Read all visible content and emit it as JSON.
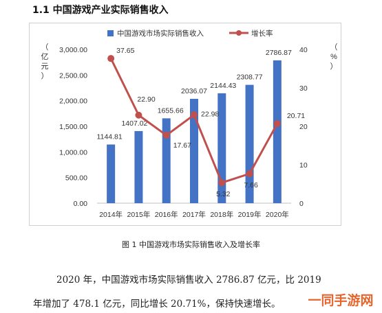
{
  "section_title": "1.1 中国游戏产业实际销售收入",
  "caption": "图 1  中国游戏市场实际销售收入及增长率",
  "paragraph_line1": "2020 年，中国游戏市场实际销售收入 2786.87 亿元，比 2019",
  "paragraph_line2": "年增加了 478.1 亿元，同比增长 20.71%，保持快速增长。",
  "watermark": "一同手游网",
  "colors": {
    "bar": "#4472c4",
    "line": "#c0504d",
    "text": "#333333"
  },
  "chart_data": {
    "type": "bar+line",
    "categories": [
      "2014年",
      "2015年",
      "2016年",
      "2017年",
      "2018年",
      "2019年",
      "2020年"
    ],
    "series": [
      {
        "name": "中国游戏市场实际销售收入",
        "type": "bar",
        "axis": "left",
        "values": [
          1144.81,
          1407.02,
          1655.66,
          2036.07,
          2144.43,
          2308.77,
          2786.87
        ],
        "labels": [
          "1144.81",
          "1407.02",
          "1655.66",
          "2036.07",
          "2144.43",
          "2308.77",
          "2786.87"
        ]
      },
      {
        "name": "增长率",
        "type": "line",
        "axis": "right",
        "values": [
          37.65,
          22.9,
          17.67,
          22.98,
          5.32,
          7.66,
          20.71
        ],
        "labels": [
          "37.65",
          "22.90",
          "17.67",
          "22.98",
          "5.32",
          "7.66",
          "20.71"
        ]
      }
    ],
    "y_left": {
      "label": "（亿元）",
      "range": [
        0,
        3000
      ],
      "ticks": [
        "0.00",
        "500.00",
        "1,000.00",
        "1,500.00",
        "2,000.00",
        "2,500.00",
        "3,000.00"
      ]
    },
    "y_right": {
      "label": "（%）",
      "range": [
        0,
        40
      ],
      "ticks": [
        "0",
        "10",
        "20",
        "30",
        "40"
      ]
    },
    "legend_position": "top",
    "grid": false
  }
}
